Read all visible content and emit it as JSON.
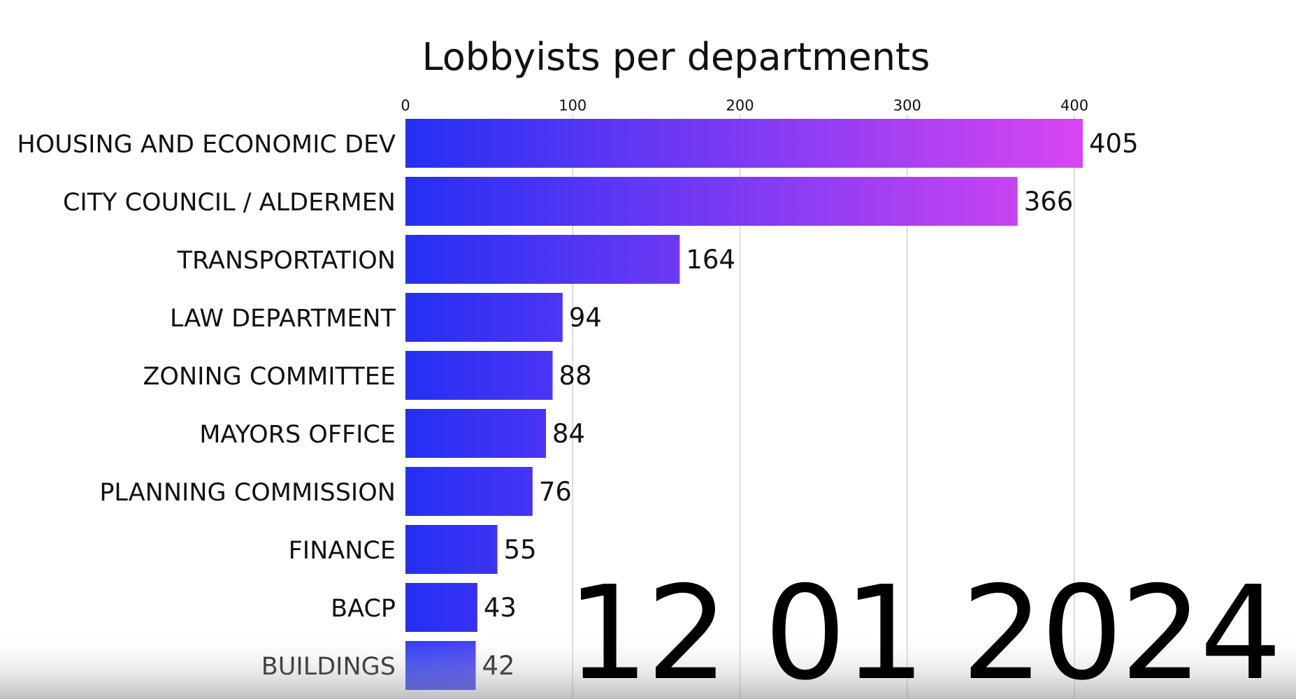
{
  "chart_data": {
    "type": "bar",
    "orientation": "horizontal",
    "title": "Lobbyists per departments",
    "categories": [
      "HOUSING AND ECONOMIC DEV",
      "CITY COUNCIL / ALDERMEN",
      "TRANSPORTATION",
      "LAW DEPARTMENT",
      "ZONING COMMITTEE",
      "MAYORS OFFICE",
      "PLANNING COMMISSION",
      "FINANCE",
      "BACP",
      "BUILDINGS"
    ],
    "values": [
      405,
      366,
      164,
      94,
      88,
      84,
      76,
      55,
      43,
      42
    ],
    "xlim": [
      0,
      405
    ],
    "xticks": [
      0,
      100,
      200,
      300,
      400
    ],
    "xtick_labels": [
      "0",
      "100",
      "200",
      "300",
      "400"
    ],
    "axis_position": "top",
    "grid": true,
    "legend": "none",
    "date_label": "12 01 2024",
    "colors": {
      "bar_low": "#2430f4",
      "bar_high": "#d846f2",
      "grid": "#cfcfcf",
      "text": "#111111"
    }
  }
}
